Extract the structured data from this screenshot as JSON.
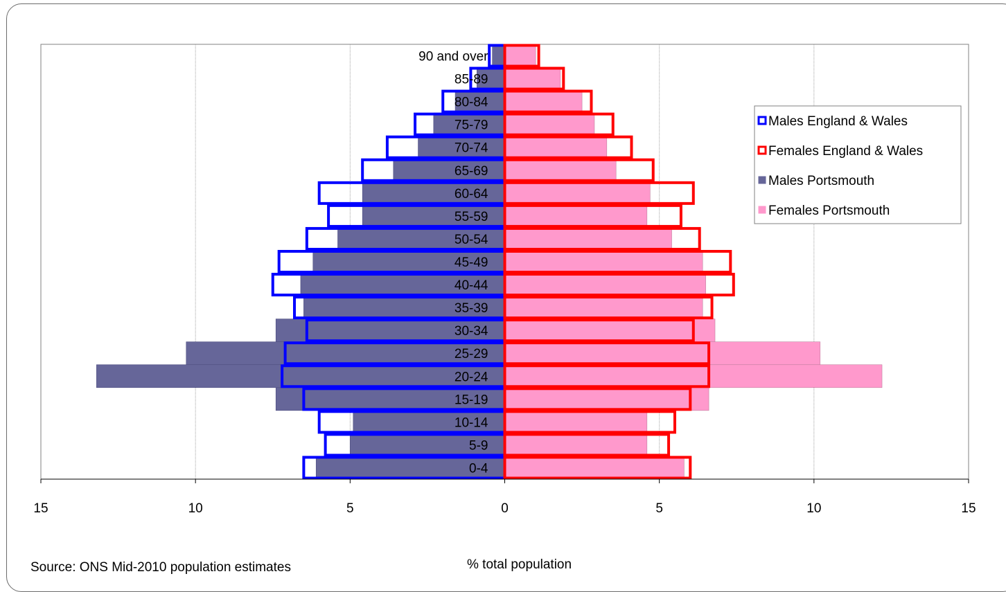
{
  "chart_data": {
    "type": "bar",
    "orientation": "horizontal-population-pyramid",
    "categories": [
      "0-4",
      "5-9",
      "10-14",
      "15-19",
      "20-24",
      "25-29",
      "30-34",
      "35-39",
      "40-44",
      "45-49",
      "50-54",
      "55-59",
      "60-64",
      "65-69",
      "70-74",
      "75-79",
      "80-84",
      "85-89",
      "90 and over"
    ],
    "series": [
      {
        "name": "Males England & Wales",
        "side": "left",
        "style": "outline",
        "color": "#0000ff",
        "values": [
          6.5,
          5.8,
          6.0,
          6.5,
          7.2,
          7.1,
          6.4,
          6.8,
          7.5,
          7.3,
          6.4,
          5.7,
          6.0,
          4.6,
          3.8,
          2.9,
          2.0,
          1.1,
          0.5
        ]
      },
      {
        "name": "Females England & Wales",
        "side": "right",
        "style": "outline",
        "color": "#ff0000",
        "values": [
          6.0,
          5.3,
          5.5,
          6.0,
          6.6,
          6.6,
          6.1,
          6.7,
          7.4,
          7.3,
          6.3,
          5.7,
          6.1,
          4.8,
          4.1,
          3.5,
          2.8,
          1.9,
          1.1
        ]
      },
      {
        "name": "Males Portsmouth",
        "side": "left",
        "style": "fill",
        "color": "#666699",
        "values": [
          6.1,
          5.0,
          4.9,
          7.4,
          13.2,
          10.3,
          7.4,
          6.5,
          6.6,
          6.2,
          5.4,
          4.6,
          4.6,
          3.6,
          2.8,
          2.3,
          1.6,
          0.9,
          0.4
        ]
      },
      {
        "name": "Females Portsmouth",
        "side": "right",
        "style": "fill",
        "color": "#ff99cc",
        "values": [
          5.8,
          4.6,
          4.6,
          6.6,
          12.2,
          10.2,
          6.8,
          6.4,
          6.5,
          6.4,
          5.4,
          4.6,
          4.7,
          3.6,
          3.3,
          2.9,
          2.5,
          1.8,
          1.0
        ]
      }
    ],
    "xticks": [
      "15",
      "10",
      "5",
      "0",
      "5",
      "10",
      "15"
    ],
    "xlim": [
      -15,
      15
    ],
    "xlabel": "% total population",
    "grid": "vertical",
    "legend_position": "right"
  },
  "source": "Source: ONS Mid-2010 population estimates"
}
